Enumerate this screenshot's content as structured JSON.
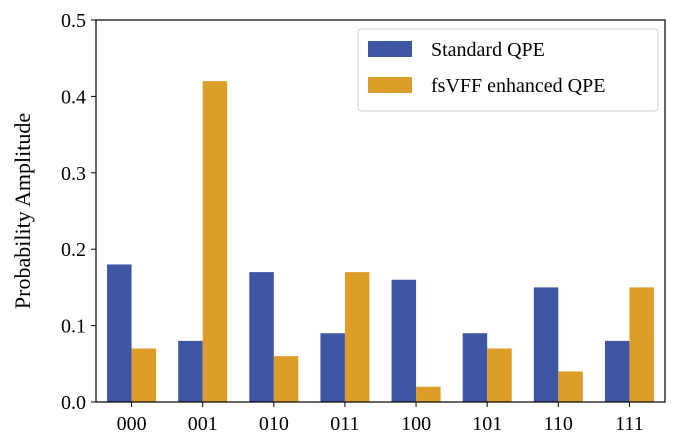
{
  "chart_data": {
    "type": "bar",
    "categories": [
      "000",
      "001",
      "010",
      "011",
      "100",
      "101",
      "110",
      "111"
    ],
    "highlight_category": "001",
    "highlight_color": "#2e8b1f",
    "series": [
      {
        "name": "Standard QPE",
        "color": "#3f56a5",
        "values": [
          0.18,
          0.08,
          0.17,
          0.09,
          0.16,
          0.09,
          0.15,
          0.08
        ]
      },
      {
        "name": "fsVFF enhanced QPE",
        "color": "#dc9e28",
        "values": [
          0.07,
          0.42,
          0.06,
          0.17,
          0.02,
          0.07,
          0.04,
          0.15
        ]
      }
    ],
    "ylabel": "Probability Amplitude",
    "xlabel": "",
    "ylim": [
      0,
      0.5
    ],
    "yticks": [
      "0.0",
      "0.1",
      "0.2",
      "0.3",
      "0.4",
      "0.5"
    ],
    "grid": false,
    "legend_position": "top-right"
  }
}
